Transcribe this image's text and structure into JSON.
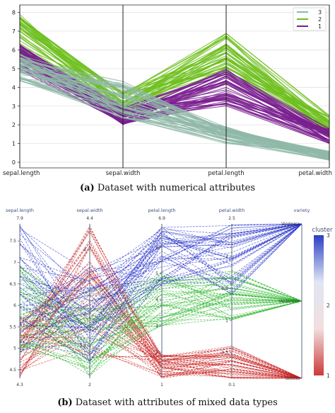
{
  "chart_data": [
    {
      "type": "line",
      "subtype": "parallel-coordinates",
      "axes": [
        "sepal.length",
        "sepal.width",
        "petal.length",
        "petal.width"
      ],
      "y_ticks": [
        "0",
        "1",
        "2",
        "3",
        "4",
        "5",
        "6",
        "7",
        "8"
      ],
      "ylim": [
        -0.3,
        8.4
      ],
      "grid": true,
      "legend_position": "top-right",
      "legend": [
        "3",
        "2",
        "1"
      ],
      "series": [
        {
          "name": "3",
          "color": "#8fb8a8",
          "line_count": 45,
          "profile": {
            "sepal.length": [
              4.3,
              5.8
            ],
            "sepal.width": [
              2.3,
              4.4
            ],
            "petal.length": [
              1.0,
              1.9
            ],
            "petal.width": [
              0.1,
              0.6
            ]
          }
        },
        {
          "name": "2",
          "color": "#6fbf1f",
          "line_count": 45,
          "profile": {
            "sepal.length": [
              5.8,
              7.9
            ],
            "sepal.width": [
              2.5,
              3.8
            ],
            "petal.length": [
              4.8,
              6.9
            ],
            "petal.width": [
              1.4,
              2.5
            ]
          }
        },
        {
          "name": "1",
          "color": "#7a1f8f",
          "line_count": 50,
          "profile": {
            "sepal.length": [
              4.9,
              6.3
            ],
            "sepal.width": [
              2.0,
              3.0
            ],
            "petal.length": [
              3.0,
              5.0
            ],
            "petal.width": [
              1.0,
              1.8
            ]
          }
        }
      ],
      "caption_label": "(a)",
      "caption_text": "Dataset with numerical attributes"
    },
    {
      "type": "line",
      "subtype": "parallel-coordinates",
      "axes": [
        {
          "name": "sepal.length",
          "max_label": "7.9",
          "min_label": "4.3",
          "ticks": [
            "7.5",
            "7",
            "6.5",
            "6",
            "5.5",
            "5",
            "4.5"
          ],
          "range": [
            4.3,
            7.9
          ]
        },
        {
          "name": "sepal.width",
          "max_label": "4.4",
          "min_label": "2",
          "ticks": [
            "4",
            "3.5",
            "3",
            "2.5"
          ],
          "range": [
            2,
            4.4
          ]
        },
        {
          "name": "petal.length",
          "max_label": "6.9",
          "min_label": "1",
          "ticks": [
            "6",
            "5",
            "4",
            "3",
            "2"
          ],
          "range": [
            1,
            6.9
          ]
        },
        {
          "name": "petal.width",
          "max_label": "2.5",
          "min_label": "0.1",
          "ticks": [
            "2",
            "1.5",
            "1",
            "0.5"
          ],
          "range": [
            0.1,
            2.5
          ]
        },
        {
          "name": "variety",
          "categories": [
            "Virginica",
            "Versicolor",
            "Setosa"
          ]
        }
      ],
      "colorbar": {
        "title": "cluster",
        "ticks": [
          "3",
          "2",
          "1"
        ],
        "colors": [
          "#2b3fc4",
          "#dfe6f3",
          "#f2dede",
          "#cc3a3a"
        ]
      },
      "series": [
        {
          "name": "Virginica",
          "color": "#2632c8",
          "line_count": 50,
          "profile": {
            "sepal.length": [
              4.9,
              7.9
            ],
            "sepal.width": [
              2.2,
              3.8
            ],
            "petal.length": [
              4.5,
              6.9
            ],
            "petal.width": [
              1.4,
              2.5
            ]
          }
        },
        {
          "name": "Versicolor",
          "color": "#28b428",
          "line_count": 50,
          "profile": {
            "sepal.length": [
              4.9,
              7.0
            ],
            "sepal.width": [
              2.0,
              3.4
            ],
            "petal.length": [
              3.0,
              5.1
            ],
            "petal.width": [
              1.0,
              1.8
            ]
          }
        },
        {
          "name": "Setosa",
          "color": "#c81e1e",
          "line_count": 50,
          "profile": {
            "sepal.length": [
              4.3,
              5.8
            ],
            "sepal.width": [
              2.3,
              4.4
            ],
            "petal.length": [
              1.0,
              1.9
            ],
            "petal.width": [
              0.1,
              0.6
            ]
          }
        }
      ],
      "caption_label": "(b)",
      "caption_text": "Dataset with attributes of mixed data types"
    }
  ]
}
